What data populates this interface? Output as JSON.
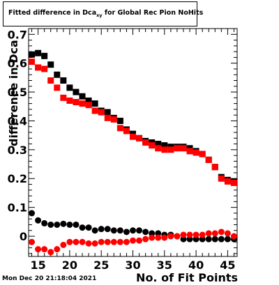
{
  "title_prefix": "Fitted difference in Dca",
  "title_sub": "xy",
  "title_suffix": " for Global Rec Pion NoHits",
  "timestamp": "Mon Dec 20 21:18:04 2021",
  "chart_data": {
    "type": "scatter",
    "title": "Fitted difference in Dca_xy for Global Rec Pion NoHits",
    "xlabel": "No. of Fit Points",
    "ylabel": "difference in Dca",
    "xlim": [
      13.5,
      46.5
    ],
    "ylim": [
      -0.07,
      0.72
    ],
    "x_ticks": [
      15,
      20,
      25,
      30,
      35,
      40,
      45
    ],
    "x_tick_labels": [
      "15",
      "20",
      "25",
      "30",
      "35",
      "40",
      "45"
    ],
    "y_ticks": [
      0,
      0.1,
      0.2,
      0.3,
      0.4,
      0.5,
      0.6,
      0.7
    ],
    "y_tick_labels": [
      "0",
      "0.1",
      "0.2",
      "0.3",
      "0.4",
      "0.5",
      "0.6",
      "0.7"
    ],
    "grid": false,
    "x": [
      14,
      15,
      16,
      17,
      18,
      19,
      20,
      21,
      22,
      23,
      24,
      25,
      26,
      27,
      28,
      29,
      30,
      31,
      32,
      33,
      34,
      35,
      36,
      37,
      38,
      39,
      40,
      41,
      42,
      43,
      44,
      45,
      46
    ],
    "series": [
      {
        "marker": "square",
        "color": "#000000",
        "values": [
          0.63,
          0.635,
          0.625,
          0.595,
          0.56,
          0.54,
          0.515,
          0.5,
          0.485,
          0.47,
          0.46,
          0.435,
          0.43,
          0.41,
          0.4,
          0.37,
          0.355,
          0.34,
          0.33,
          0.325,
          0.32,
          0.315,
          0.31,
          0.31,
          0.31,
          0.305,
          0.295,
          0.285,
          0.265,
          0.24,
          0.205,
          0.195,
          0.19
        ]
      },
      {
        "marker": "square",
        "color": "#ff0000",
        "values": [
          0.605,
          0.585,
          0.58,
          0.54,
          0.515,
          0.48,
          0.47,
          0.465,
          0.46,
          0.455,
          0.435,
          0.43,
          0.41,
          0.405,
          0.375,
          0.365,
          0.345,
          0.34,
          0.325,
          0.315,
          0.305,
          0.3,
          0.3,
          0.305,
          0.305,
          0.295,
          0.29,
          0.285,
          0.265,
          0.24,
          0.2,
          0.19,
          0.185
        ]
      },
      {
        "marker": "circle",
        "color": "#000000",
        "values": [
          0.08,
          0.055,
          0.045,
          0.04,
          0.04,
          0.043,
          0.04,
          0.04,
          0.03,
          0.03,
          0.02,
          0.025,
          0.025,
          0.02,
          0.02,
          0.015,
          0.02,
          0.02,
          0.015,
          0.01,
          0.01,
          0.005,
          0.005,
          0.0,
          -0.01,
          -0.01,
          -0.01,
          -0.01,
          -0.01,
          -0.01,
          -0.01,
          -0.01,
          -0.01
        ]
      },
      {
        "marker": "circle",
        "color": "#ff0000",
        "values": [
          -0.02,
          -0.045,
          -0.045,
          -0.055,
          -0.045,
          -0.03,
          -0.02,
          -0.02,
          -0.02,
          -0.025,
          -0.025,
          -0.02,
          -0.02,
          -0.02,
          -0.02,
          -0.02,
          -0.015,
          -0.015,
          -0.01,
          -0.005,
          -0.005,
          -0.005,
          0.0,
          0.0,
          0.005,
          0.005,
          0.005,
          0.005,
          0.01,
          0.01,
          0.015,
          0.01,
          0.0
        ]
      }
    ]
  }
}
